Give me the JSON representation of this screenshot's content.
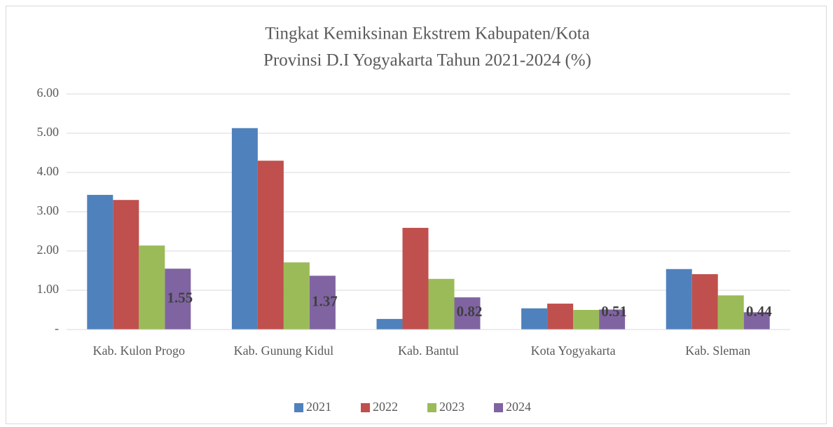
{
  "chart_data": {
    "type": "bar",
    "title": [
      "Tingkat Kemiksinan Ekstrem Kabupaten/Kota",
      "Provinsi D.I Yogyakarta Tahun 2021-2024 (%)"
    ],
    "categories": [
      "Kab. Kulon Progo",
      "Kab. Gunung Kidul",
      "Kab. Bantul",
      "Kota Yogyakarta",
      "Kab. Sleman"
    ],
    "series": [
      {
        "name": "2021",
        "color": "#4f81bd",
        "values": [
          3.43,
          5.13,
          0.27,
          0.54,
          1.54
        ]
      },
      {
        "name": "2022",
        "color": "#c0504d",
        "values": [
          3.3,
          4.3,
          2.59,
          0.66,
          1.41
        ]
      },
      {
        "name": "2023",
        "color": "#9bbb59",
        "values": [
          2.14,
          1.71,
          1.29,
          0.5,
          0.87
        ]
      },
      {
        "name": "2024",
        "color": "#8064a2",
        "values": [
          1.55,
          1.37,
          0.82,
          0.51,
          0.44
        ],
        "show_labels": true
      }
    ],
    "ylim": [
      0,
      6
    ],
    "yticks": [
      {
        "value": 0,
        "label": "-"
      },
      {
        "value": 1,
        "label": "1.00"
      },
      {
        "value": 2,
        "label": "2.00"
      },
      {
        "value": 3,
        "label": "3.00"
      },
      {
        "value": 4,
        "label": "4.00"
      },
      {
        "value": 5,
        "label": "5.00"
      },
      {
        "value": 6,
        "label": "6.00"
      }
    ],
    "grid": true,
    "legend": "bottom"
  }
}
